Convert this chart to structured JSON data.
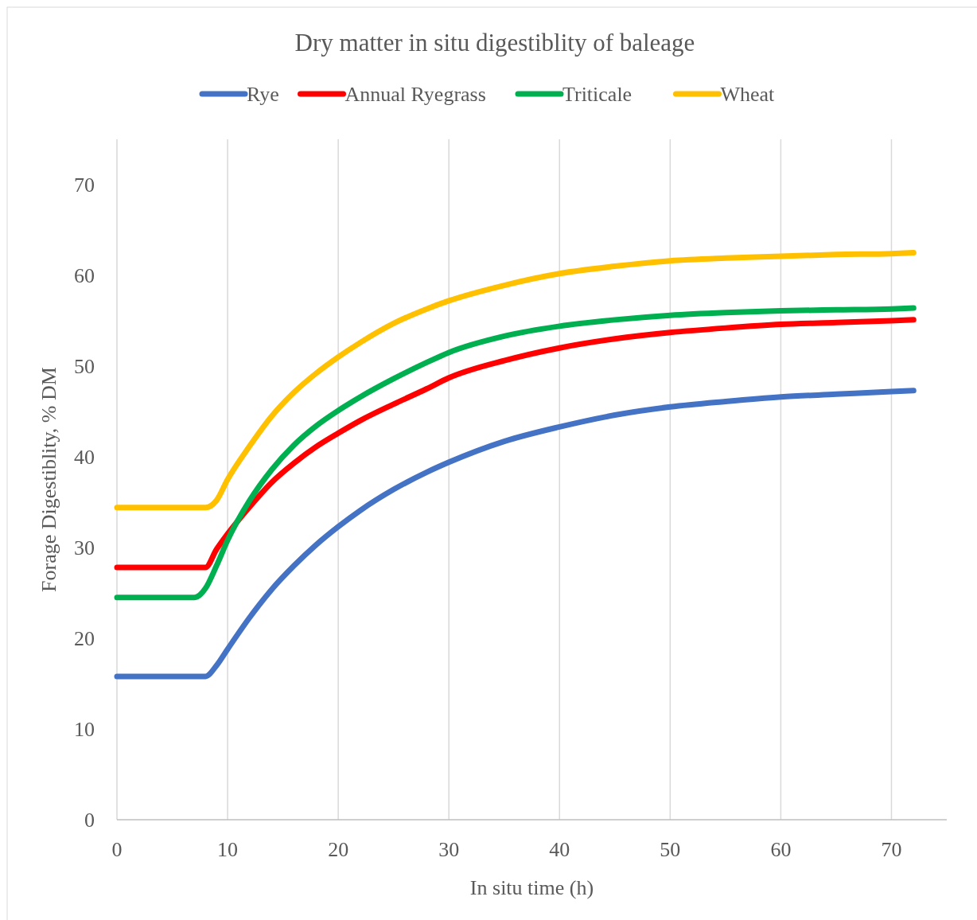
{
  "chart_data": {
    "type": "line",
    "title": "Dry matter in situ digestiblity of baleage",
    "xlabel": "In situ time (h)",
    "ylabel": "Forage Digestiblity, % DM",
    "x": [
      0,
      2,
      4,
      6,
      7,
      8,
      9,
      10,
      12,
      14,
      16,
      18,
      20,
      22,
      25,
      28,
      30,
      35,
      40,
      45,
      50,
      55,
      60,
      65,
      70,
      72
    ],
    "xlim": [
      0,
      75
    ],
    "xticks": [
      0,
      10,
      20,
      30,
      40,
      50,
      60,
      70
    ],
    "ylim": [
      0,
      75
    ],
    "yticks": [
      0,
      10,
      20,
      30,
      40,
      50,
      60,
      70
    ],
    "grid": "x",
    "legend": "top",
    "marker": "none",
    "line_style": "solid",
    "series": [
      {
        "name": "Rye",
        "color": "#4472c4",
        "values": [
          15.8,
          15.8,
          15.8,
          15.8,
          15.8,
          15.8,
          17.0,
          18.8,
          22.3,
          25.4,
          28.0,
          30.3,
          32.3,
          34.1,
          36.4,
          38.3,
          39.4,
          41.7,
          43.3,
          44.6,
          45.5,
          46.1,
          46.6,
          46.9,
          47.2,
          47.3
        ]
      },
      {
        "name": "Annual Ryegrass",
        "color": "#ff0000",
        "values": [
          27.8,
          27.8,
          27.8,
          27.8,
          27.8,
          27.8,
          29.8,
          31.5,
          34.5,
          37.2,
          39.3,
          41.1,
          42.6,
          44.0,
          45.8,
          47.5,
          48.7,
          50.6,
          52.0,
          53.0,
          53.7,
          54.2,
          54.6,
          54.8,
          55.0,
          55.1
        ]
      },
      {
        "name": "Triticale",
        "color": "#00b050",
        "values": [
          24.5,
          24.5,
          24.5,
          24.5,
          24.5,
          25.5,
          28.0,
          30.8,
          35.2,
          38.6,
          41.3,
          43.4,
          45.1,
          46.6,
          48.6,
          50.4,
          51.5,
          53.3,
          54.4,
          55.1,
          55.6,
          55.9,
          56.1,
          56.2,
          56.3,
          56.4
        ]
      },
      {
        "name": "Wheat",
        "color": "#ffc000",
        "values": [
          34.4,
          34.4,
          34.4,
          34.4,
          34.4,
          34.4,
          35.2,
          37.5,
          41.2,
          44.5,
          47.1,
          49.2,
          51.0,
          52.6,
          54.7,
          56.3,
          57.2,
          58.9,
          60.2,
          61.0,
          61.6,
          61.9,
          62.1,
          62.3,
          62.4,
          62.5
        ]
      }
    ]
  }
}
